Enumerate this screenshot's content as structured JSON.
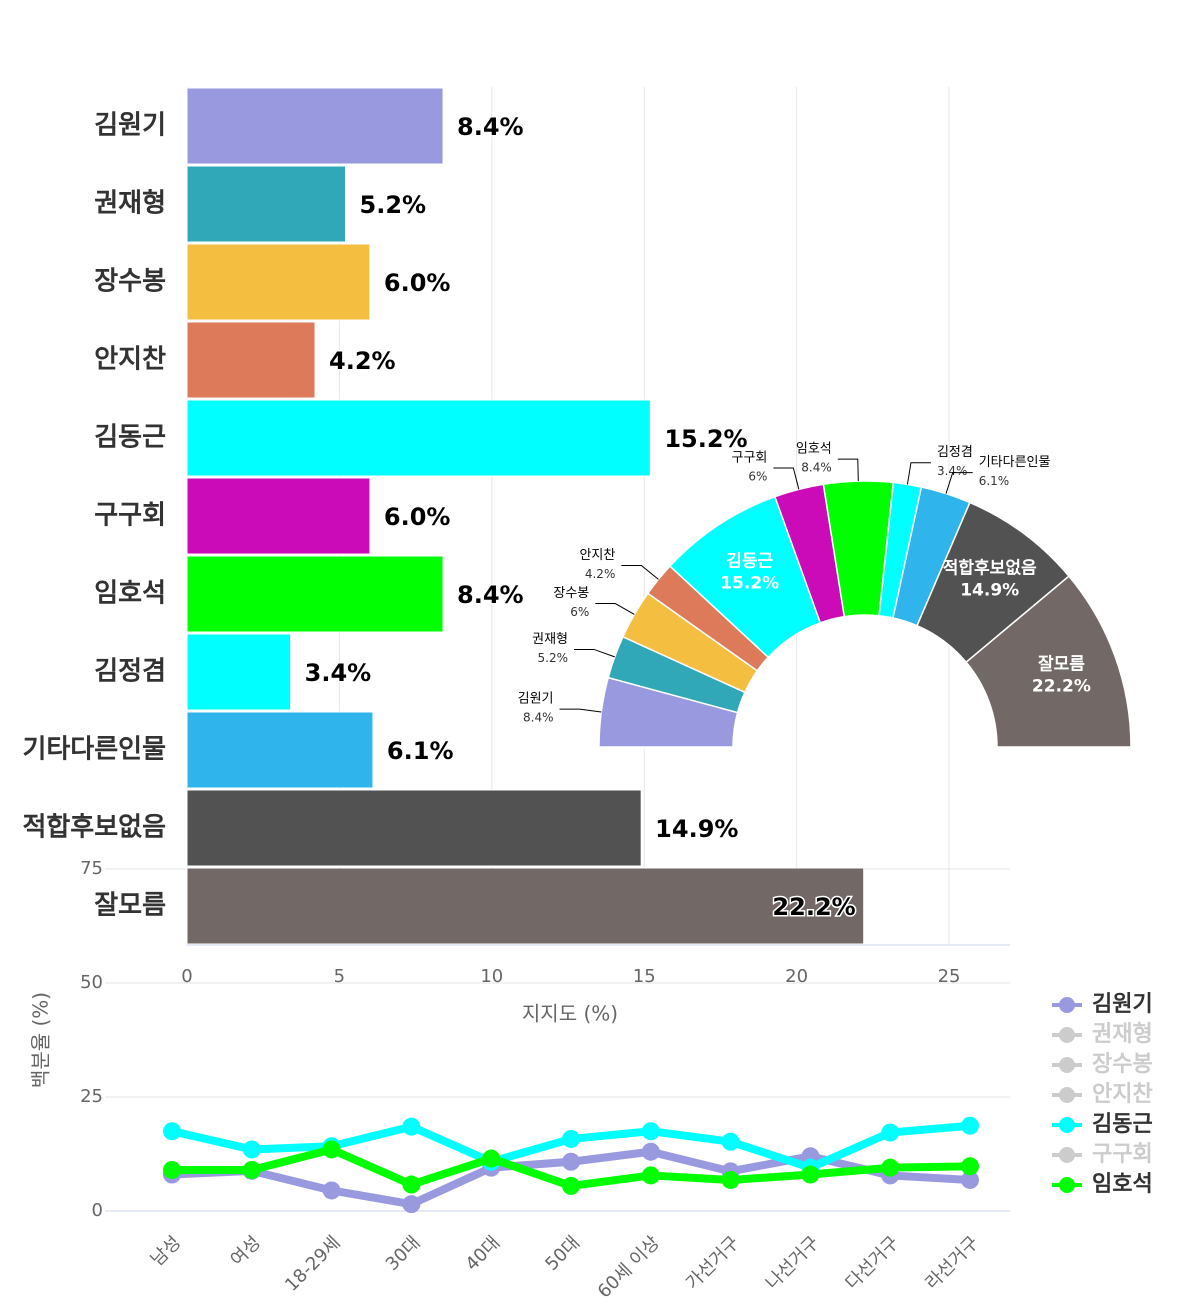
{
  "chart_data": [
    {
      "type": "bar",
      "orientation": "horizontal",
      "categories": [
        "김원기",
        "권재형",
        "장수봉",
        "안지찬",
        "김동근",
        "구구회",
        "임호석",
        "김정겸",
        "기타다른인물",
        "적합후보없음",
        "잘모름"
      ],
      "values": [
        8.4,
        5.2,
        6,
        4.2,
        15.2,
        6,
        8.4,
        3.4,
        6.1,
        14.9,
        22.2
      ],
      "value_labels": [
        "8.4%",
        "5.2%",
        "6.0%",
        "4.2%",
        "15.2%",
        "6.0%",
        "8.4%",
        "3.4%",
        "6.1%",
        "14.9%",
        "22.2%"
      ],
      "colors": [
        "#9999e0",
        "#31a8b8",
        "#f4be41",
        "#dc7a5a",
        "#00ffff",
        "#cc0bb8",
        "#00ff00",
        "#00ffff",
        "#30b4ec",
        "#525252",
        "#726966"
      ],
      "xlim": [
        0,
        27
      ],
      "xticks": [
        0,
        5,
        10,
        15,
        20,
        25
      ],
      "xlabel": "지지도 (%)",
      "grid": true
    },
    {
      "type": "pie",
      "donut": true,
      "half": true,
      "categories": [
        "김원기",
        "권재형",
        "장수봉",
        "안지찬",
        "김동근",
        "구구회",
        "임호석",
        "김정겸",
        "기타다른인물",
        "적합후보없음",
        "잘모름"
      ],
      "values": [
        8.4,
        5.2,
        6,
        4.2,
        15.2,
        6,
        8.4,
        3.4,
        6.1,
        14.9,
        22.2
      ],
      "value_labels": [
        "8.4%",
        "5.2%",
        "6%",
        "4.2%",
        "15.2%",
        "6%",
        "8.4%",
        "3.4%",
        "6.1%",
        "14.9%",
        "22.2%"
      ],
      "colors": [
        "#9999e0",
        "#31a8b8",
        "#f4be41",
        "#dc7a5a",
        "#00ffff",
        "#cc0bb8",
        "#00ff00",
        "#00ffff",
        "#30b4ec",
        "#525252",
        "#726966"
      ]
    },
    {
      "type": "line",
      "categories": [
        "남성",
        "여성",
        "18-29세",
        "30대",
        "40대",
        "50대",
        "60세 이상",
        "가선거구",
        "나선거구",
        "다선거구",
        "라선거구"
      ],
      "ylim": [
        0,
        75
      ],
      "yticks": [
        0,
        25,
        50,
        75
      ],
      "ylabel": "백분율 (%)",
      "grid": true,
      "series": [
        {
          "name": "김원기",
          "color": "#9999e0",
          "values": [
            8.0,
            8.8,
            4.5,
            1.5,
            9.5,
            10.8,
            13.0,
            8.7,
            12.0,
            7.8,
            6.8
          ]
        },
        {
          "name": "권재형",
          "color": "#31a8b8",
          "visible": false
        },
        {
          "name": "장수봉",
          "color": "#f4be41",
          "visible": false
        },
        {
          "name": "안지찬",
          "color": "#dc7a5a",
          "visible": false
        },
        {
          "name": "김동근",
          "color": "#00ffff",
          "values": [
            17.5,
            13.5,
            14.2,
            18.5,
            10.8,
            15.8,
            17.5,
            15.2,
            9.5,
            17.2,
            18.7
          ]
        },
        {
          "name": "구구회",
          "color": "#cc0bb8",
          "visible": false
        },
        {
          "name": "임호석",
          "color": "#00ff00",
          "values": [
            9.0,
            9.0,
            13.5,
            5.8,
            11.5,
            5.5,
            7.8,
            6.8,
            8.0,
            9.5,
            9.8
          ]
        }
      ]
    }
  ]
}
